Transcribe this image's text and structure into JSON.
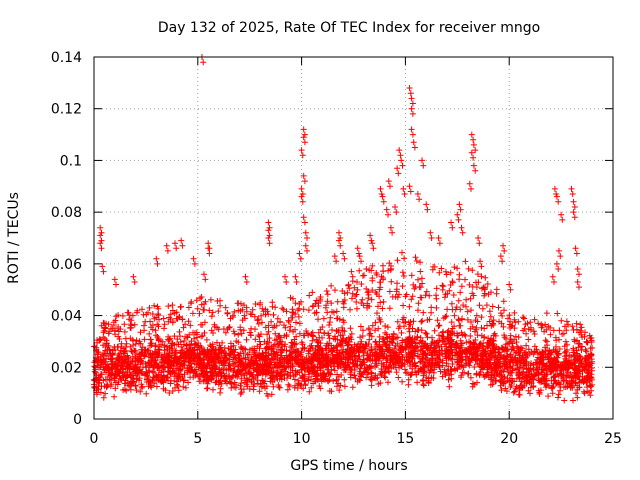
{
  "chart_data": {
    "type": "scatter",
    "title": "Day 132 of 2025, Rate Of TEC Index for receiver mngo",
    "xlabel": "GPS time / hours",
    "ylabel": "ROTI / TECUs",
    "xlim": [
      0,
      25
    ],
    "ylim": [
      0,
      0.14
    ],
    "x_ticks": [
      0,
      5,
      10,
      15,
      20,
      25
    ],
    "x_tick_labels": [
      "0",
      "5",
      "10",
      "15",
      "20",
      "25"
    ],
    "y_ticks": [
      0,
      0.02,
      0.04,
      0.06,
      0.08,
      0.1,
      0.12,
      0.14
    ],
    "y_tick_labels": [
      "0",
      "0.02",
      "0.04",
      "0.06",
      "0.08",
      "0.1",
      "0.12",
      "0.14"
    ],
    "grid": true,
    "marker": "+",
    "series": [
      {
        "name": "ROTI",
        "color": "#ff0000",
        "x_range": [
          0,
          24
        ],
        "baseline": [
          [
            0,
            0.018
          ],
          [
            1,
            0.02
          ],
          [
            2,
            0.019
          ],
          [
            3,
            0.02
          ],
          [
            4,
            0.021
          ],
          [
            5,
            0.022
          ],
          [
            6,
            0.021
          ],
          [
            7,
            0.02
          ],
          [
            8,
            0.02
          ],
          [
            9,
            0.021
          ],
          [
            10,
            0.021
          ],
          [
            11,
            0.022
          ],
          [
            12,
            0.023
          ],
          [
            13,
            0.023
          ],
          [
            14,
            0.024
          ],
          [
            15,
            0.025
          ],
          [
            16,
            0.024
          ],
          [
            17,
            0.024
          ],
          [
            18,
            0.025
          ],
          [
            19,
            0.023
          ],
          [
            20,
            0.02
          ],
          [
            21,
            0.018
          ],
          [
            22,
            0.019
          ],
          [
            23,
            0.018
          ],
          [
            24,
            0.018
          ]
        ],
        "upper_envelope": [
          [
            0,
            0.035
          ],
          [
            1,
            0.04
          ],
          [
            2,
            0.042
          ],
          [
            3,
            0.044
          ],
          [
            4,
            0.046
          ],
          [
            5,
            0.048
          ],
          [
            6,
            0.046
          ],
          [
            7,
            0.045
          ],
          [
            8,
            0.045
          ],
          [
            9,
            0.046
          ],
          [
            10,
            0.048
          ],
          [
            11,
            0.05
          ],
          [
            12,
            0.055
          ],
          [
            13,
            0.058
          ],
          [
            14,
            0.062
          ],
          [
            15,
            0.066
          ],
          [
            16,
            0.06
          ],
          [
            17,
            0.058
          ],
          [
            18,
            0.062
          ],
          [
            19,
            0.055
          ],
          [
            20,
            0.044
          ],
          [
            21,
            0.038
          ],
          [
            22,
            0.042
          ],
          [
            23,
            0.04
          ],
          [
            24,
            0.032
          ]
        ],
        "outliers": [
          [
            0.3,
            0.074
          ],
          [
            0.3,
            0.071
          ],
          [
            0.3,
            0.068
          ],
          [
            0.4,
            0.059
          ],
          [
            1.0,
            0.054
          ],
          [
            1.9,
            0.055
          ],
          [
            3.0,
            0.062
          ],
          [
            3.5,
            0.067
          ],
          [
            3.9,
            0.068
          ],
          [
            4.2,
            0.069
          ],
          [
            4.8,
            0.062
          ],
          [
            5.2,
            0.14
          ],
          [
            5.5,
            0.068
          ],
          [
            5.5,
            0.066
          ],
          [
            5.3,
            0.056
          ],
          [
            7.3,
            0.055
          ],
          [
            8.4,
            0.076
          ],
          [
            8.4,
            0.073
          ],
          [
            8.4,
            0.07
          ],
          [
            9.2,
            0.055
          ],
          [
            9.7,
            0.055
          ],
          [
            9.9,
            0.064
          ],
          [
            10.1,
            0.112
          ],
          [
            10.1,
            0.109
          ],
          [
            10.0,
            0.104
          ],
          [
            10.1,
            0.094
          ],
          [
            10.0,
            0.089
          ],
          [
            10.0,
            0.086
          ],
          [
            10.1,
            0.078
          ],
          [
            10.2,
            0.072
          ],
          [
            10.2,
            0.067
          ],
          [
            11.6,
            0.063
          ],
          [
            11.8,
            0.072
          ],
          [
            11.8,
            0.069
          ],
          [
            12.0,
            0.064
          ],
          [
            12.4,
            0.057
          ],
          [
            12.7,
            0.066
          ],
          [
            12.8,
            0.063
          ],
          [
            13.3,
            0.071
          ],
          [
            13.4,
            0.068
          ],
          [
            13.8,
            0.089
          ],
          [
            13.9,
            0.086
          ],
          [
            14.1,
            0.081
          ],
          [
            14.2,
            0.092
          ],
          [
            14.3,
            0.074
          ],
          [
            14.5,
            0.082
          ],
          [
            14.6,
            0.097
          ],
          [
            14.7,
            0.104
          ],
          [
            14.8,
            0.1
          ],
          [
            14.9,
            0.089
          ],
          [
            15.2,
            0.128
          ],
          [
            15.3,
            0.124
          ],
          [
            15.3,
            0.12
          ],
          [
            15.3,
            0.112
          ],
          [
            15.4,
            0.107
          ],
          [
            15.2,
            0.09
          ],
          [
            15.6,
            0.087
          ],
          [
            15.8,
            0.1
          ],
          [
            16.0,
            0.083
          ],
          [
            16.2,
            0.072
          ],
          [
            16.6,
            0.07
          ],
          [
            17.2,
            0.076
          ],
          [
            17.5,
            0.079
          ],
          [
            17.6,
            0.083
          ],
          [
            17.7,
            0.074
          ],
          [
            18.1,
            0.091
          ],
          [
            18.2,
            0.11
          ],
          [
            18.3,
            0.106
          ],
          [
            18.2,
            0.103
          ],
          [
            18.3,
            0.098
          ],
          [
            18.5,
            0.07
          ],
          [
            18.6,
            0.061
          ],
          [
            19.7,
            0.067
          ],
          [
            19.6,
            0.063
          ],
          [
            20.0,
            0.052
          ],
          [
            22.2,
            0.089
          ],
          [
            22.3,
            0.086
          ],
          [
            22.5,
            0.079
          ],
          [
            22.4,
            0.065
          ],
          [
            22.3,
            0.06
          ],
          [
            22.1,
            0.055
          ],
          [
            23.0,
            0.089
          ],
          [
            23.1,
            0.084
          ],
          [
            23.1,
            0.08
          ],
          [
            23.2,
            0.066
          ],
          [
            23.3,
            0.058
          ],
          [
            23.3,
            0.053
          ]
        ]
      }
    ]
  }
}
